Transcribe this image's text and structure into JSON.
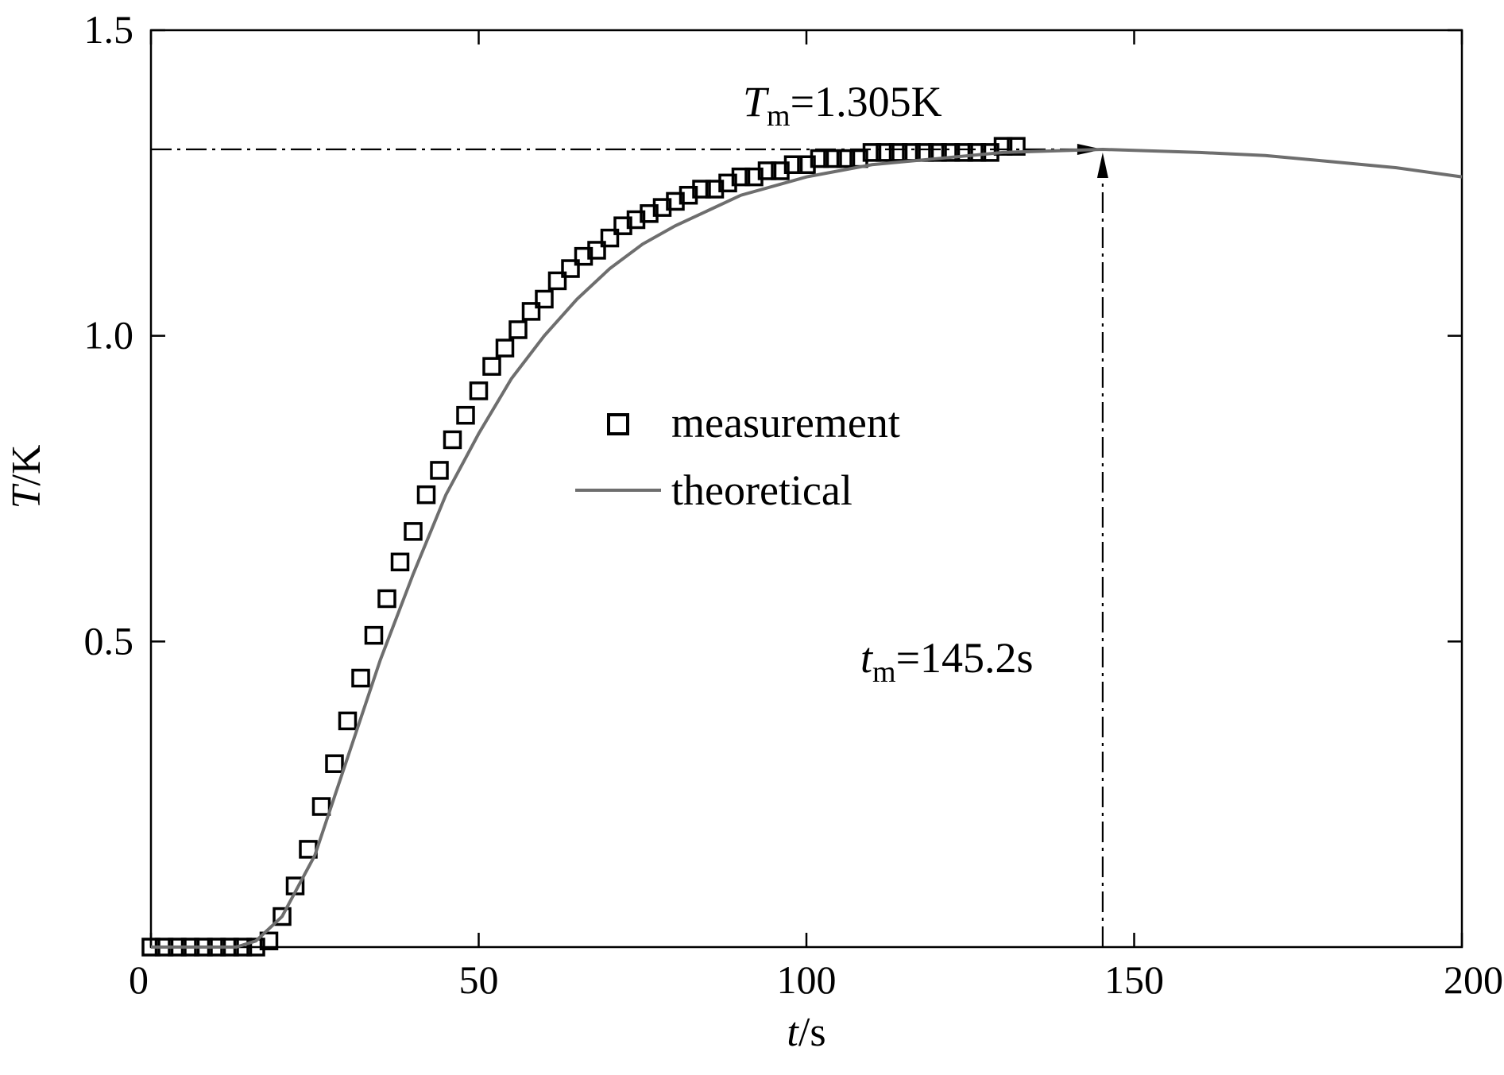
{
  "chart_data": {
    "type": "scatter",
    "xlabel": {
      "var": "t",
      "unit": "/s"
    },
    "ylabel": {
      "var": "T",
      "unit": "/K"
    },
    "xlim": [
      0,
      200
    ],
    "ylim": [
      0,
      1.5
    ],
    "x_ticks": [
      0,
      50,
      100,
      150,
      200
    ],
    "x_tick_labels": [
      "0",
      "50",
      "100",
      "150",
      "200"
    ],
    "y_ticks": [
      0.5,
      1.0,
      1.5
    ],
    "y_tick_labels": [
      "0.5",
      "1.0",
      "1.5"
    ],
    "grid": false,
    "legend_position": "center",
    "series": [
      {
        "name": "measurement",
        "kind": "markers",
        "marker": "square",
        "color": "#000000",
        "x": [
          0,
          2,
          4,
          6,
          8,
          10,
          12,
          14,
          16,
          18,
          20,
          22,
          24,
          26,
          28,
          30,
          32,
          34,
          36,
          38,
          40,
          42,
          44,
          46,
          48,
          50,
          52,
          54,
          56,
          58,
          60,
          62,
          64,
          66,
          68,
          70,
          72,
          74,
          76,
          78,
          80,
          82,
          84,
          86,
          88,
          90,
          92,
          94,
          96,
          98,
          100,
          102,
          104,
          106,
          108,
          110,
          112,
          114,
          116,
          118,
          120,
          122,
          124,
          126,
          128,
          130,
          132
        ],
        "y": [
          0.0,
          0.0,
          0.0,
          0.0,
          0.0,
          0.0,
          0.0,
          0.0,
          0.0,
          0.01,
          0.05,
          0.1,
          0.16,
          0.23,
          0.3,
          0.37,
          0.44,
          0.51,
          0.57,
          0.63,
          0.68,
          0.74,
          0.78,
          0.83,
          0.87,
          0.91,
          0.95,
          0.98,
          1.01,
          1.04,
          1.06,
          1.09,
          1.11,
          1.13,
          1.14,
          1.16,
          1.18,
          1.19,
          1.2,
          1.21,
          1.22,
          1.23,
          1.24,
          1.24,
          1.25,
          1.26,
          1.26,
          1.27,
          1.27,
          1.28,
          1.28,
          1.29,
          1.29,
          1.29,
          1.29,
          1.3,
          1.3,
          1.3,
          1.3,
          1.3,
          1.3,
          1.3,
          1.3,
          1.3,
          1.3,
          1.31,
          1.31
        ]
      },
      {
        "name": "theoretical",
        "kind": "line",
        "color": "#6e6e6e",
        "x": [
          0,
          10,
          13,
          16,
          20,
          25,
          30,
          35,
          40,
          45,
          50,
          55,
          60,
          65,
          70,
          75,
          80,
          90,
          100,
          110,
          120,
          130,
          145.2,
          160,
          170,
          180,
          190,
          200
        ],
        "y": [
          0.0,
          0.0,
          0.0,
          0.01,
          0.05,
          0.15,
          0.31,
          0.47,
          0.61,
          0.74,
          0.84,
          0.93,
          1.0,
          1.06,
          1.11,
          1.15,
          1.18,
          1.23,
          1.26,
          1.28,
          1.29,
          1.3,
          1.305,
          1.3,
          1.295,
          1.285,
          1.275,
          1.26
        ]
      }
    ],
    "annotations": [
      {
        "id": "Tm",
        "var": "T",
        "sub": "m",
        "text": "=1.305K",
        "x_data": 145.2,
        "y_data": 1.305
      },
      {
        "id": "tm",
        "var": "t",
        "sub": "m",
        "text": "=145.2s",
        "x_data": 145.2,
        "y_data": 1.305
      }
    ]
  }
}
